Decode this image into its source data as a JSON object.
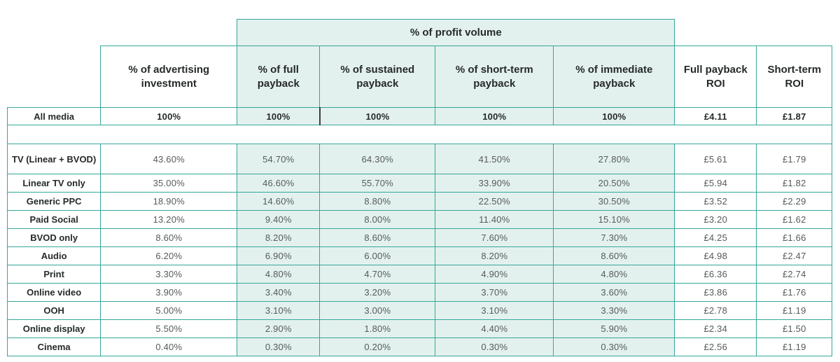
{
  "chart_data": {
    "type": "table",
    "group_header": {
      "label": "% of profit volume",
      "spans_columns": [
        "% of full payback",
        "% of sustained payback",
        "% of short-term payback",
        "% of immediate payback"
      ]
    },
    "columns": [
      "% of advertising investment",
      "% of full payback",
      "% of sustained payback",
      "% of short-term payback",
      "% of immediate payback",
      "Full payback ROI",
      "Short-term ROI"
    ],
    "summary_row": [
      "All media",
      "100%",
      "100%",
      "100%",
      "100%",
      "100%",
      "£4.11",
      "£1.87"
    ],
    "rows": [
      [
        "TV (Linear + BVOD)",
        "43.60%",
        "54.70%",
        "64.30%",
        "41.50%",
        "27.80%",
        "£5.61",
        "£1.79"
      ],
      [
        "Linear TV only",
        "35.00%",
        "46.60%",
        "55.70%",
        "33.90%",
        "20.50%",
        "£5.94",
        "£1.82"
      ],
      [
        "Generic PPC",
        "18.90%",
        "14.60%",
        "8.80%",
        "22.50%",
        "30.50%",
        "£3.52",
        "£2.29"
      ],
      [
        "Paid Social",
        "13.20%",
        "9.40%",
        "8.00%",
        "11.40%",
        "15.10%",
        "£3.20",
        "£1.62"
      ],
      [
        "BVOD only",
        "8.60%",
        "8.20%",
        "8.60%",
        "7.60%",
        "7.30%",
        "£4.25",
        "£1.66"
      ],
      [
        "Audio",
        "6.20%",
        "6.90%",
        "6.00%",
        "8.20%",
        "8.60%",
        "£4.98",
        "£2.47"
      ],
      [
        "Print",
        "3.30%",
        "4.80%",
        "4.70%",
        "4.90%",
        "4.80%",
        "£6.36",
        "£2.74"
      ],
      [
        "Online video",
        "3.90%",
        "3.40%",
        "3.20%",
        "3.70%",
        "3.60%",
        "£3.86",
        "£1.76"
      ],
      [
        "OOH",
        "5.00%",
        "3.10%",
        "3.00%",
        "3.10%",
        "3.30%",
        "£2.78",
        "£1.19"
      ],
      [
        "Online display",
        "5.50%",
        "2.90%",
        "1.80%",
        "4.40%",
        "5.90%",
        "£2.34",
        "£1.50"
      ],
      [
        "Cinema",
        "0.40%",
        "0.30%",
        "0.20%",
        "0.30%",
        "0.30%",
        "£2.56",
        "£1.19"
      ]
    ],
    "colors": {
      "border_teal": "#35a79a",
      "cell_fill_teal": "#e3f1ee",
      "summary_divider_dark": "#3a3e3e"
    },
    "layout": {
      "highlighted_columns": [
        "% of full payback",
        "% of sustained payback",
        "% of short-term payback",
        "% of immediate payback"
      ],
      "grid": "teal borders, spacer row between summary and media rows"
    }
  }
}
